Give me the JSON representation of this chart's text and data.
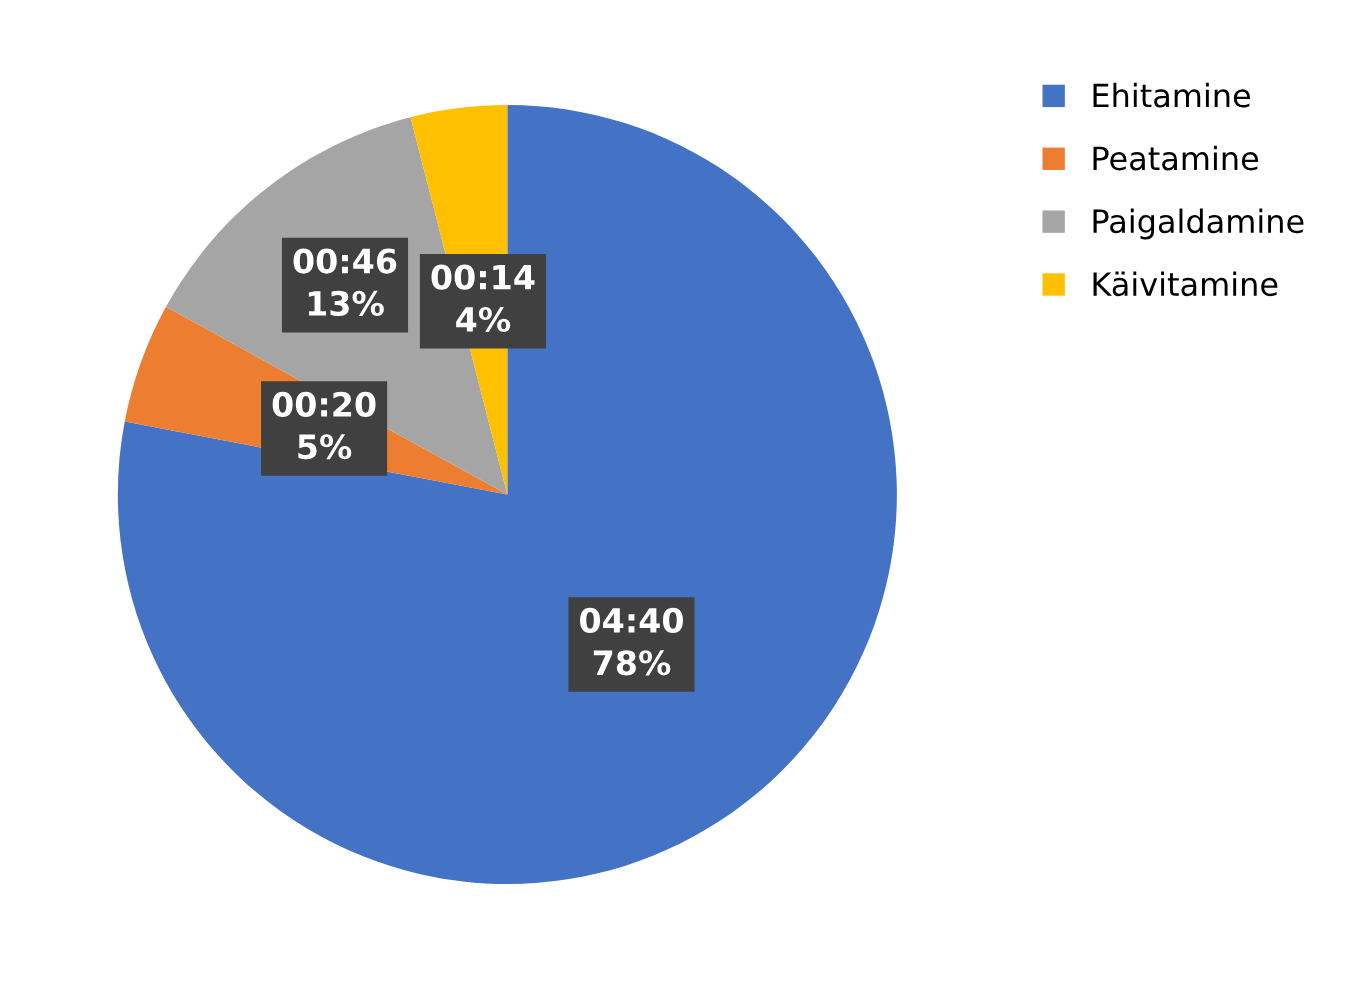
{
  "chart_data": {
    "type": "pie",
    "categories": [
      "Ehitamine",
      "Peatamine",
      "Paigaldamine",
      "Käivitamine"
    ],
    "values": [
      78,
      5,
      13,
      4
    ],
    "value_labels": [
      "04:40\n78%",
      "00:20\n5%",
      "00:46\n13%",
      "00:14\n4%"
    ],
    "colors": [
      "#4472c4",
      "#ed7d31",
      "#a5a5a5",
      "#ffc000"
    ],
    "legend": "right"
  }
}
